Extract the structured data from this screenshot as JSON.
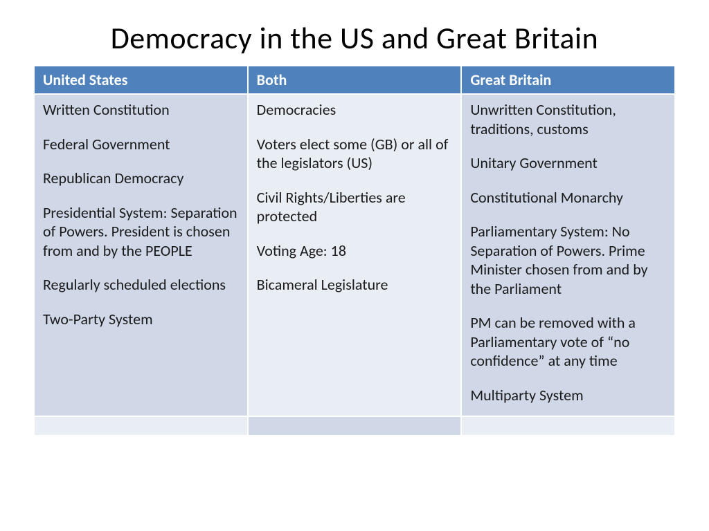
{
  "slide": {
    "title": "Democracy in the US and Great Britain",
    "title_fontsize": 44,
    "title_color": "#000000",
    "background_color": "#ffffff"
  },
  "table": {
    "type": "table",
    "header_bg": "#4f81bd",
    "header_color": "#ffffff",
    "col1_bg": "#d0d8e8",
    "col2_bg": "#e9edf4",
    "col3_bg": "#d0d8e8",
    "footer_col1_bg": "#e9edf4",
    "footer_col2_bg": "#d0d8e8",
    "footer_col3_bg": "#e9edf4",
    "border_color": "#ffffff",
    "cell_fontsize": 22,
    "header_fontsize": 22,
    "columns": [
      {
        "label": "United States"
      },
      {
        "label": "Both"
      },
      {
        "label": "Great Britain"
      }
    ],
    "rows": [
      {
        "us": [
          "Written Constitution",
          "Federal Government",
          "Republican Democracy",
          "Presidential System: Separation of Powers. President is chosen from and by the PEOPLE",
          "Regularly scheduled elections",
          "Two-Party System"
        ],
        "both": [
          "Democracies",
          "Voters elect some (GB) or all of the legislators (US)",
          "Civil Rights/Liberties are protected",
          "Voting Age: 18",
          "Bicameral Legislature"
        ],
        "gb": [
          "Unwritten Constitution, traditions, customs",
          "Unitary Government",
          "Constitutional Monarchy",
          "Parliamentary System:  No Separation of Powers.  Prime Minister chosen from and by the Parliament",
          "PM can be removed with a Parliamentary vote of “no confidence” at any time",
          "Multiparty System"
        ]
      }
    ]
  }
}
